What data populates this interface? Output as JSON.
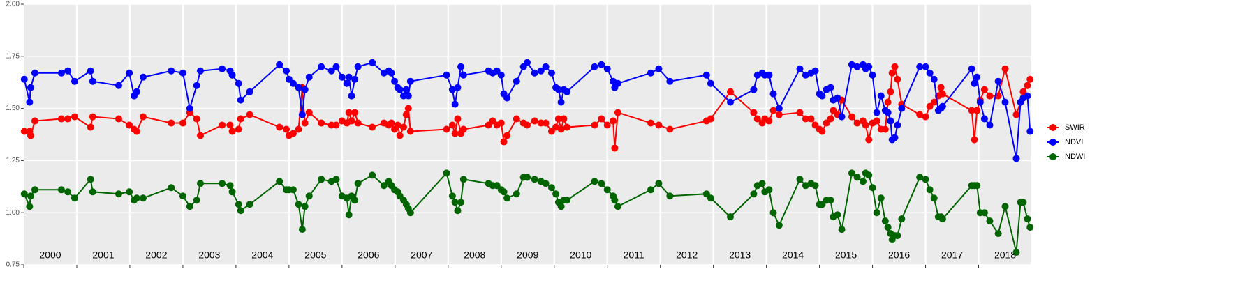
{
  "chart_data": {
    "type": "line",
    "x": [
      2000.01,
      2000.11,
      2000.13,
      2000.21,
      2000.71,
      2000.83,
      2000.96,
      2001.26,
      2001.3,
      2001.79,
      2001.99,
      2002.08,
      2002.13,
      2002.25,
      2002.78,
      2003.0,
      2003.13,
      2003.26,
      2003.33,
      2003.74,
      2003.89,
      2003.93,
      2004.05,
      2004.09,
      2004.26,
      2004.82,
      2004.95,
      2005.0,
      2005.08,
      2005.18,
      2005.25,
      2005.3,
      2005.38,
      2005.61,
      2005.8,
      2005.89,
      2006.0,
      2006.09,
      2006.13,
      2006.18,
      2006.24,
      2006.3,
      2006.57,
      2006.79,
      2006.88,
      2006.93,
      2006.99,
      2007.05,
      2007.09,
      2007.16,
      2007.21,
      2007.25,
      2007.29,
      2007.97,
      2008.08,
      2008.13,
      2008.18,
      2008.24,
      2008.29,
      2008.76,
      2008.84,
      2008.92,
      2009.0,
      2009.05,
      2009.11,
      2009.29,
      2009.42,
      2009.49,
      2009.63,
      2009.75,
      2009.84,
      2009.95,
      2010.03,
      2010.08,
      2010.13,
      2010.18,
      2010.24,
      2010.76,
      2010.89,
      2011.0,
      2011.11,
      2011.14,
      2011.2,
      2011.82,
      2011.97,
      2012.18,
      2012.87,
      2012.95,
      2013.32,
      2013.76,
      2013.83,
      2013.92,
      2013.97,
      2014.05,
      2014.13,
      2014.24,
      2014.63,
      2014.74,
      2014.84,
      2014.92,
      2015.0,
      2015.05,
      2015.13,
      2015.21,
      2015.26,
      2015.34,
      2015.42,
      2015.61,
      2015.71,
      2015.82,
      2015.87,
      2015.93,
      2016.0,
      2016.08,
      2016.16,
      2016.24,
      2016.29,
      2016.34,
      2016.37,
      2016.42,
      2016.47,
      2016.55,
      2016.89,
      2017.0,
      2017.08,
      2017.16,
      2017.24,
      2017.29,
      2017.32,
      2017.87,
      2017.92,
      2017.97,
      2018.03,
      2018.11,
      2018.21,
      2018.37,
      2018.5,
      2018.71,
      2018.79,
      2018.84,
      2018.92,
      2018.97
    ],
    "series": [
      {
        "name": "SWIR",
        "color": "#ff0000",
        "values": [
          1.39,
          1.39,
          1.37,
          1.44,
          1.45,
          1.45,
          1.46,
          1.41,
          1.46,
          1.45,
          1.42,
          1.4,
          1.39,
          1.46,
          1.43,
          1.43,
          1.48,
          1.45,
          1.37,
          1.42,
          1.42,
          1.39,
          1.4,
          1.45,
          1.47,
          1.41,
          1.4,
          1.37,
          1.38,
          1.4,
          1.6,
          1.43,
          1.48,
          1.43,
          1.42,
          1.42,
          1.44,
          1.43,
          1.48,
          1.44,
          1.48,
          1.43,
          1.41,
          1.43,
          1.42,
          1.43,
          1.4,
          1.42,
          1.37,
          1.41,
          1.47,
          1.5,
          1.39,
          1.4,
          1.42,
          1.38,
          1.45,
          1.38,
          1.4,
          1.42,
          1.44,
          1.42,
          1.43,
          1.34,
          1.37,
          1.45,
          1.43,
          1.42,
          1.44,
          1.43,
          1.43,
          1.39,
          1.41,
          1.45,
          1.4,
          1.45,
          1.41,
          1.42,
          1.45,
          1.42,
          1.44,
          1.31,
          1.48,
          1.43,
          1.42,
          1.4,
          1.44,
          1.45,
          1.58,
          1.48,
          1.45,
          1.43,
          1.45,
          1.44,
          1.49,
          1.47,
          1.48,
          1.45,
          1.45,
          1.42,
          1.4,
          1.39,
          1.43,
          1.45,
          1.49,
          1.47,
          1.54,
          1.46,
          1.43,
          1.44,
          1.42,
          1.35,
          1.43,
          1.44,
          1.4,
          1.4,
          1.53,
          1.58,
          1.67,
          1.7,
          1.64,
          1.52,
          1.47,
          1.46,
          1.51,
          1.53,
          1.56,
          1.6,
          1.57,
          1.49,
          1.35,
          1.49,
          1.54,
          1.59,
          1.56,
          1.56,
          1.69,
          1.47,
          1.53,
          1.58,
          1.61,
          1.64
        ]
      },
      {
        "name": "NDVI",
        "color": "#0000ff",
        "values": [
          1.64,
          1.53,
          1.6,
          1.67,
          1.67,
          1.68,
          1.63,
          1.68,
          1.63,
          1.61,
          1.67,
          1.56,
          1.58,
          1.65,
          1.68,
          1.67,
          1.5,
          1.61,
          1.68,
          1.69,
          1.68,
          1.66,
          1.62,
          1.54,
          1.58,
          1.71,
          1.68,
          1.64,
          1.62,
          1.6,
          1.47,
          1.59,
          1.65,
          1.7,
          1.68,
          1.7,
          1.65,
          1.62,
          1.65,
          1.56,
          1.64,
          1.7,
          1.72,
          1.67,
          1.68,
          1.67,
          1.63,
          1.6,
          1.59,
          1.56,
          1.59,
          1.56,
          1.63,
          1.66,
          1.59,
          1.52,
          1.6,
          1.7,
          1.66,
          1.68,
          1.67,
          1.68,
          1.66,
          1.57,
          1.55,
          1.63,
          1.7,
          1.72,
          1.67,
          1.68,
          1.7,
          1.67,
          1.6,
          1.59,
          1.53,
          1.59,
          1.58,
          1.7,
          1.71,
          1.69,
          1.63,
          1.6,
          1.62,
          1.67,
          1.69,
          1.63,
          1.66,
          1.62,
          1.53,
          1.59,
          1.66,
          1.67,
          1.66,
          1.66,
          1.57,
          1.5,
          1.69,
          1.66,
          1.67,
          1.68,
          1.57,
          1.56,
          1.59,
          1.6,
          1.54,
          1.55,
          1.46,
          1.71,
          1.7,
          1.71,
          1.69,
          1.7,
          1.66,
          1.48,
          1.56,
          1.49,
          1.48,
          1.44,
          1.35,
          1.36,
          1.42,
          1.5,
          1.7,
          1.7,
          1.67,
          1.64,
          1.49,
          1.5,
          1.51,
          1.69,
          1.62,
          1.65,
          1.53,
          1.45,
          1.42,
          1.63,
          1.53,
          1.26,
          1.53,
          1.55,
          1.56,
          1.39
        ]
      },
      {
        "name": "NDWI",
        "color": "#006400",
        "values": [
          1.09,
          1.03,
          1.08,
          1.11,
          1.11,
          1.1,
          1.07,
          1.16,
          1.1,
          1.09,
          1.1,
          1.06,
          1.07,
          1.07,
          1.12,
          1.08,
          1.03,
          1.06,
          1.14,
          1.14,
          1.13,
          1.1,
          1.04,
          1.01,
          1.04,
          1.15,
          1.11,
          1.11,
          1.11,
          1.04,
          0.92,
          1.03,
          1.08,
          1.16,
          1.15,
          1.16,
          1.08,
          1.07,
          0.99,
          1.08,
          1.06,
          1.14,
          1.18,
          1.13,
          1.15,
          1.13,
          1.11,
          1.1,
          1.08,
          1.06,
          1.04,
          1.02,
          1.0,
          1.19,
          1.08,
          1.05,
          1.01,
          1.05,
          1.16,
          1.14,
          1.13,
          1.13,
          1.11,
          1.1,
          1.07,
          1.09,
          1.17,
          1.17,
          1.16,
          1.15,
          1.14,
          1.12,
          1.09,
          1.05,
          1.03,
          1.06,
          1.06,
          1.15,
          1.14,
          1.11,
          1.08,
          1.06,
          1.03,
          1.11,
          1.14,
          1.08,
          1.09,
          1.07,
          0.98,
          1.09,
          1.13,
          1.14,
          1.1,
          1.11,
          1.0,
          0.94,
          1.16,
          1.13,
          1.14,
          1.13,
          1.04,
          1.04,
          1.06,
          1.06,
          0.98,
          0.99,
          0.92,
          1.19,
          1.17,
          1.15,
          1.19,
          1.18,
          1.12,
          1.0,
          1.07,
          0.96,
          0.93,
          0.9,
          0.87,
          0.89,
          0.89,
          0.97,
          1.17,
          1.16,
          1.11,
          1.07,
          0.98,
          0.98,
          0.97,
          1.13,
          1.13,
          1.13,
          1.0,
          1.0,
          0.96,
          0.9,
          1.03,
          0.81,
          1.05,
          1.05,
          0.97,
          0.93
        ]
      }
    ],
    "xlim": [
      2000,
      2018.98
    ],
    "xticks": [
      {
        "value": 2000,
        "label": "2000"
      },
      {
        "value": 2001,
        "label": "2001"
      },
      {
        "value": 2002,
        "label": "2002"
      },
      {
        "value": 2003,
        "label": "2003"
      },
      {
        "value": 2004,
        "label": "2004"
      },
      {
        "value": 2005,
        "label": "2005"
      },
      {
        "value": 2006,
        "label": "2006"
      },
      {
        "value": 2007,
        "label": "2007"
      },
      {
        "value": 2008,
        "label": "2008"
      },
      {
        "value": 2009,
        "label": "2009"
      },
      {
        "value": 2010,
        "label": "2010"
      },
      {
        "value": 2011,
        "label": "2011"
      },
      {
        "value": 2012,
        "label": "2012"
      },
      {
        "value": 2013,
        "label": "2013"
      },
      {
        "value": 2014,
        "label": "2014"
      },
      {
        "value": 2015,
        "label": "2015"
      },
      {
        "value": 2016,
        "label": "2016"
      },
      {
        "value": 2017,
        "label": "2017"
      },
      {
        "value": 2018,
        "label": "2018"
      }
    ],
    "ylim": [
      0.75,
      2.0
    ],
    "yticks": [
      {
        "value": 0.75,
        "label": "0.75"
      },
      {
        "value": 1.0,
        "label": "1.00"
      },
      {
        "value": 1.25,
        "label": "1.25"
      },
      {
        "value": 1.5,
        "label": "1.50"
      },
      {
        "value": 1.75,
        "label": "1.75"
      },
      {
        "value": 2.0,
        "label": "2.00"
      }
    ],
    "grid": true,
    "legend": "right"
  }
}
